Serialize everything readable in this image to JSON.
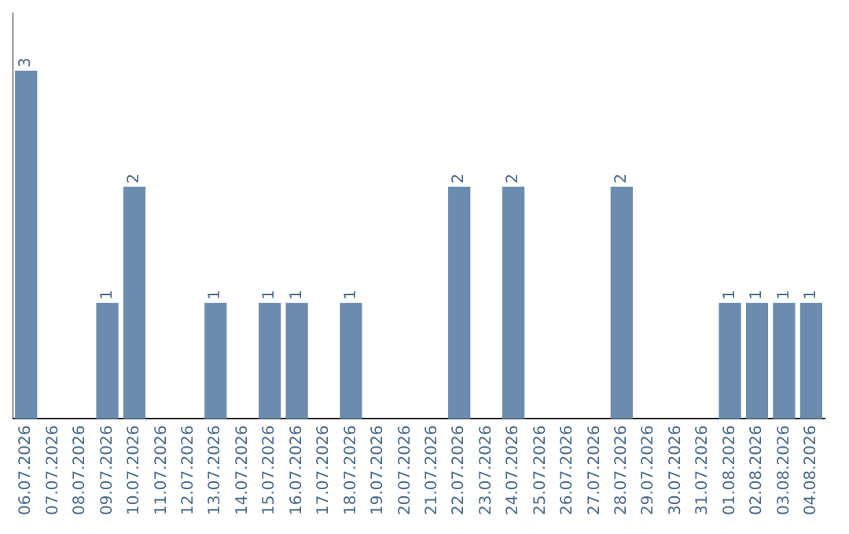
{
  "chart_data": {
    "type": "bar",
    "categories": [
      "06.07.2026",
      "07.07.2026",
      "08.07.2026",
      "09.07.2026",
      "10.07.2026",
      "11.07.2026",
      "12.07.2026",
      "13.07.2026",
      "14.07.2026",
      "15.07.2026",
      "16.07.2026",
      "17.07.2026",
      "18.07.2026",
      "19.07.2026",
      "20.07.2026",
      "21.07.2026",
      "22.07.2026",
      "23.07.2026",
      "24.07.2026",
      "25.07.2026",
      "26.07.2026",
      "27.07.2026",
      "28.07.2026",
      "29.07.2026",
      "30.07.2026",
      "31.07.2026",
      "01.08.2026",
      "02.08.2026",
      "03.08.2026",
      "04.08.2026"
    ],
    "values": [
      3,
      0,
      0,
      1,
      2,
      0,
      0,
      1,
      0,
      1,
      1,
      0,
      1,
      0,
      0,
      0,
      2,
      0,
      2,
      0,
      0,
      0,
      2,
      0,
      0,
      0,
      1,
      1,
      1,
      1
    ],
    "value_labels": [
      "3",
      null,
      null,
      "1",
      "2",
      null,
      null,
      "1",
      null,
      "1",
      "1",
      null,
      "1",
      null,
      null,
      null,
      "2",
      null,
      "2",
      null,
      null,
      null,
      "2",
      null,
      null,
      null,
      "1",
      "1",
      "1",
      "1"
    ],
    "color": "#6b8cae",
    "tick_labels": "x",
    "grid": false,
    "legend": false
  }
}
